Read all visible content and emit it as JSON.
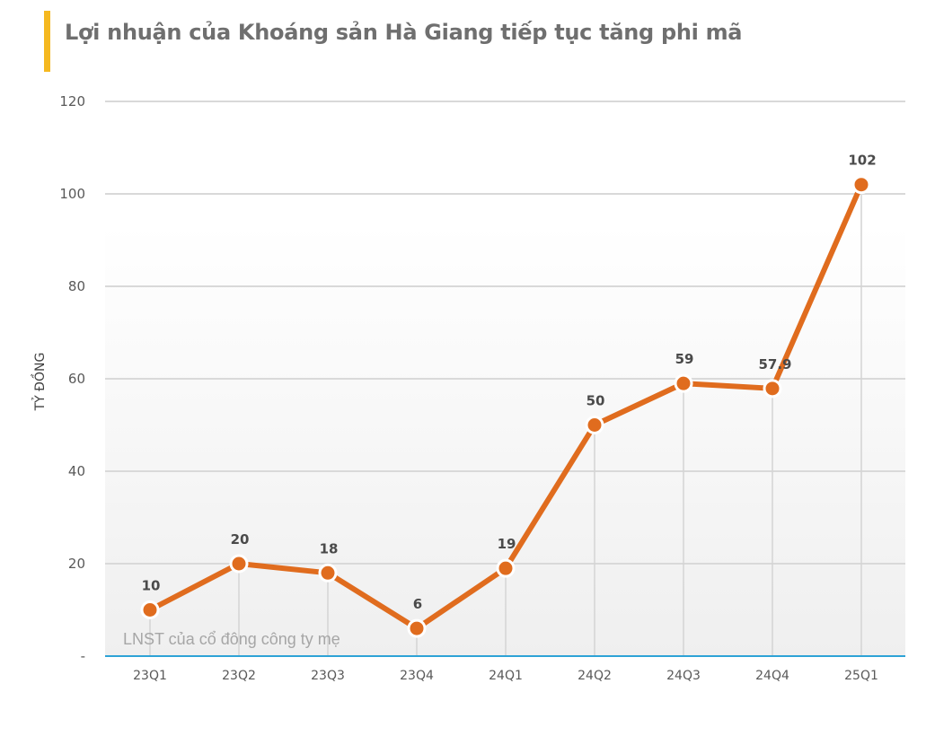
{
  "header": {
    "title": "Lợi nhuận của Khoáng sản Hà Giang tiếp tục tăng phi mã",
    "accent_color": "#f5b820"
  },
  "colors": {
    "line": "#e06c1e",
    "grid": "#d9d9d9",
    "baseline": "#2ea3d6",
    "label": "#4a4a4a"
  },
  "chart_data": {
    "type": "line",
    "title": "Lợi nhuận của Khoáng sản Hà Giang tiếp tục tăng phi mã",
    "xlabel": "",
    "ylabel": "TỶ ĐỒNG",
    "categories": [
      "23Q1",
      "23Q2",
      "23Q3",
      "23Q4",
      "24Q1",
      "24Q2",
      "24Q3",
      "24Q4",
      "25Q1"
    ],
    "series": [
      {
        "name": "LNST của cổ đông công ty mẹ",
        "values": [
          10,
          20,
          18,
          6,
          19,
          50,
          59,
          57.9,
          102
        ],
        "labels": [
          "10",
          "20",
          "18",
          "6",
          "19",
          "50",
          "59",
          "57.9",
          "102"
        ],
        "color": "#e06c1e"
      }
    ],
    "ylim": [
      0,
      120
    ],
    "yticks": [
      0,
      20,
      40,
      60,
      80,
      100,
      120
    ],
    "ytick_labels": [
      "-",
      "20",
      "40",
      "60",
      "80",
      "100",
      "120"
    ],
    "grid": true,
    "legend": "inline annotation bottom-left: LNST của cổ đông công ty mẹ"
  }
}
